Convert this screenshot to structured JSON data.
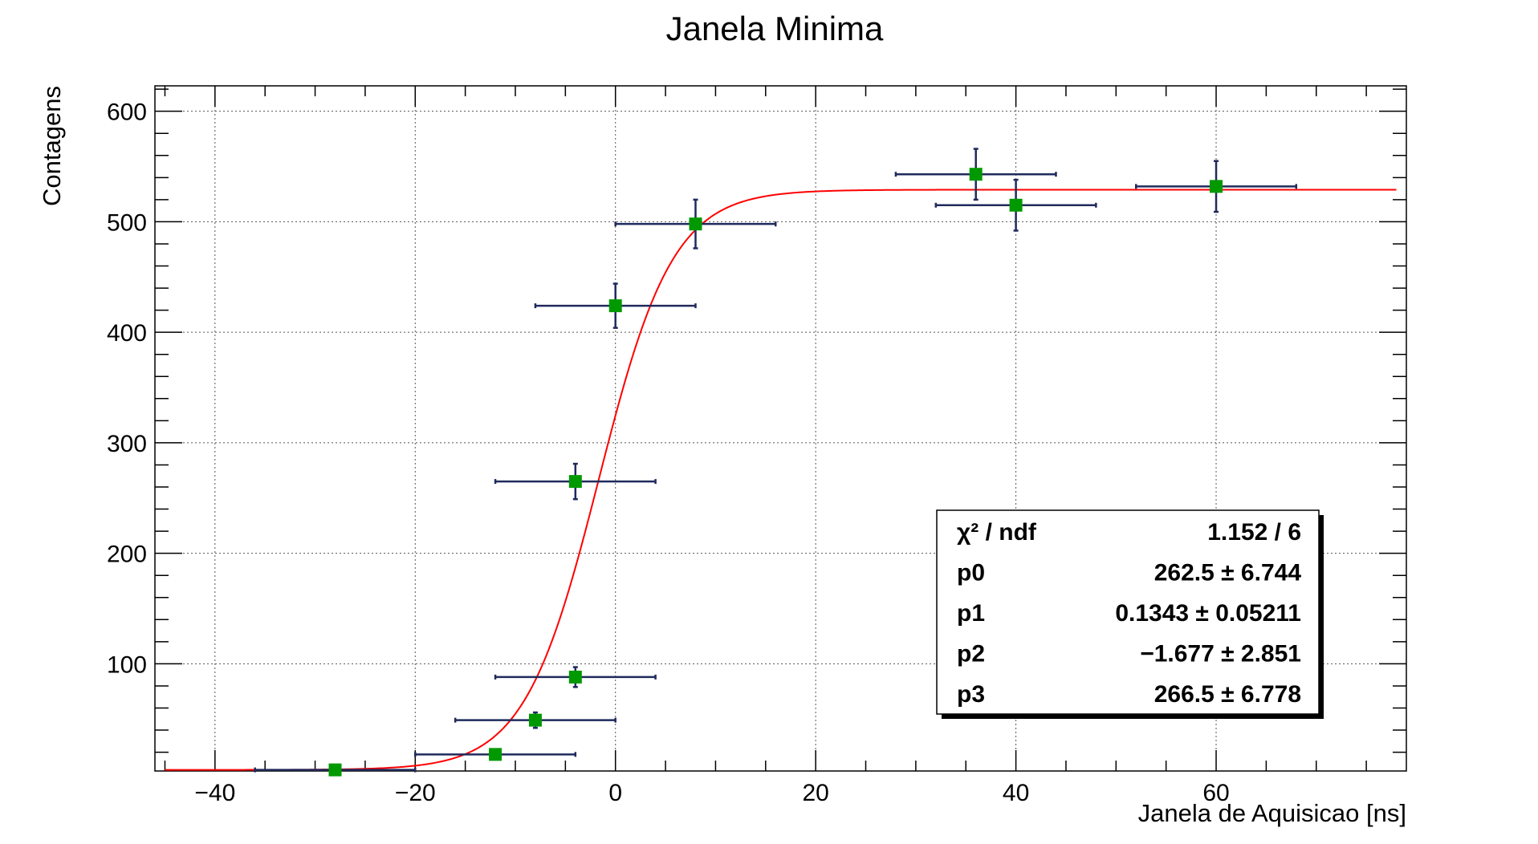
{
  "chart_data": {
    "type": "scatter",
    "title": "Janela Minima",
    "xlabel": "Janela de Aquisicao [ns]",
    "ylabel": "Contagens",
    "xlim": [
      -46,
      79
    ],
    "ylim": [
      3,
      623
    ],
    "xticks": [
      -40,
      -20,
      0,
      20,
      40,
      60
    ],
    "xtick_labels": [
      "−40",
      "−20",
      "0",
      "20",
      "40",
      "60"
    ],
    "yticks": [
      100,
      200,
      300,
      400,
      500,
      600
    ],
    "ytick_labels": [
      "100",
      "200",
      "300",
      "400",
      "500",
      "600"
    ],
    "grid": true,
    "colors": {
      "marker": "#009900",
      "errorbar": "#1f2a5c",
      "fit": "#ff0000"
    },
    "points": [
      {
        "x": -28,
        "y": 4,
        "xerr": 8,
        "yerr": 2
      },
      {
        "x": -12,
        "y": 18,
        "xerr": 8,
        "yerr": 4
      },
      {
        "x": -8,
        "y": 49,
        "xerr": 8,
        "yerr": 7
      },
      {
        "x": -4,
        "y": 88,
        "xerr": 8,
        "yerr": 9
      },
      {
        "x": -4,
        "y": 265,
        "xerr": 8,
        "yerr": 16
      },
      {
        "x": 0,
        "y": 424,
        "xerr": 8,
        "yerr": 20
      },
      {
        "x": 8,
        "y": 498,
        "xerr": 8,
        "yerr": 22
      },
      {
        "x": 36,
        "y": 543,
        "xerr": 8,
        "yerr": 23
      },
      {
        "x": 40,
        "y": 515,
        "xerr": 8,
        "yerr": 23
      },
      {
        "x": 60,
        "y": 532,
        "xerr": 8,
        "yerr": 23
      }
    ],
    "fit": {
      "p0": 262.5,
      "p1": 0.1343,
      "p2": -1.677,
      "p3": 266.5,
      "x_range": [
        -45,
        78
      ]
    },
    "stats_box": {
      "placement": "bottom-right",
      "rows": [
        {
          "label": "χ² / ndf",
          "value": "1.152 / 6"
        },
        {
          "label": "p0",
          "value": "262.5 ± 6.744"
        },
        {
          "label": "p1",
          "value": "0.1343 ± 0.05211"
        },
        {
          "label": "p2",
          "value": "−1.677 ± 2.851"
        },
        {
          "label": "p3",
          "value": "266.5 ± 6.778"
        }
      ]
    }
  }
}
